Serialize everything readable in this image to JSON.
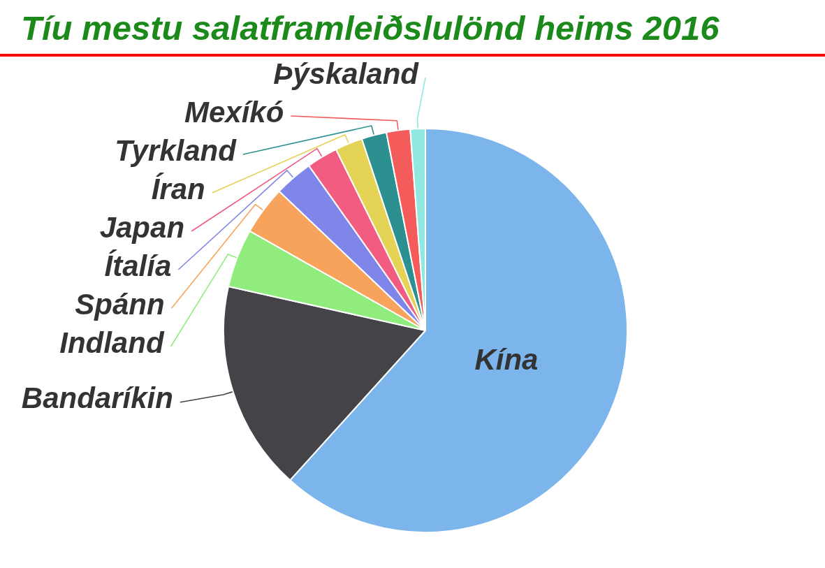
{
  "chart_data": {
    "type": "pie",
    "title": "Tíu mestu salatframleiðslulönd heims 2016",
    "categories": [
      "Kína",
      "Bandaríkin",
      "Indland",
      "Spánn",
      "Ítalía",
      "Japan",
      "Íran",
      "Tyrkland",
      "Mexíkó",
      "Þýskaland"
    ],
    "values": [
      61.7,
      16.8,
      4.7,
      3.9,
      3.1,
      2.5,
      2.2,
      2.0,
      1.9,
      1.2
    ],
    "colors": [
      "#7cb5ec",
      "#434348",
      "#90ed7d",
      "#f7a35c",
      "#8085e9",
      "#f15c80",
      "#e4d354",
      "#2b908f",
      "#f45b5b",
      "#91e8e1"
    ]
  }
}
